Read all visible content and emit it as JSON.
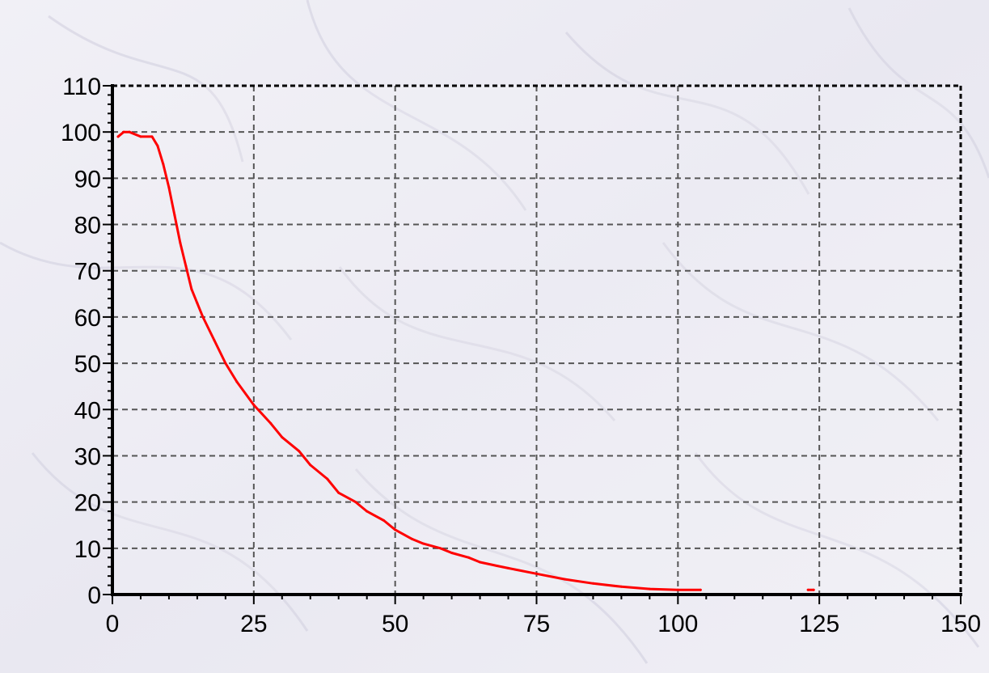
{
  "chart_data": {
    "type": "line",
    "title": "",
    "xlabel": "",
    "ylabel": "",
    "xlim": [
      0,
      150
    ],
    "ylim": [
      0,
      110
    ],
    "x_ticks": [
      "0",
      "25",
      "50",
      "75",
      "100",
      "125",
      "150"
    ],
    "y_ticks": [
      "0",
      "10",
      "20",
      "30",
      "40",
      "50",
      "60",
      "70",
      "80",
      "90",
      "100",
      "110"
    ],
    "grid": true,
    "legend": "none",
    "series": [
      {
        "color": "#ff0000",
        "x": [
          1,
          2,
          3,
          5,
          7,
          8,
          9,
          10,
          11,
          12,
          13,
          14,
          15,
          16,
          18,
          20,
          22,
          25,
          28,
          30,
          33,
          35,
          38,
          40,
          43,
          45,
          48,
          50,
          53,
          55,
          58,
          60,
          63,
          65,
          68,
          70,
          75,
          80,
          85,
          90,
          95,
          100,
          104
        ],
        "y": [
          99,
          100,
          100,
          99,
          99,
          97,
          93,
          88,
          82,
          76,
          71,
          66,
          63,
          60,
          55,
          50,
          46,
          41,
          37,
          34,
          31,
          28,
          25,
          22,
          20,
          18,
          16,
          14,
          12,
          11,
          10,
          9,
          8,
          7,
          6.2,
          5.7,
          4.5,
          3.3,
          2.4,
          1.7,
          1.2,
          1,
          1
        ]
      },
      {
        "color": "#ff0000",
        "x": [
          123,
          124
        ],
        "y": [
          1,
          1
        ]
      }
    ]
  }
}
